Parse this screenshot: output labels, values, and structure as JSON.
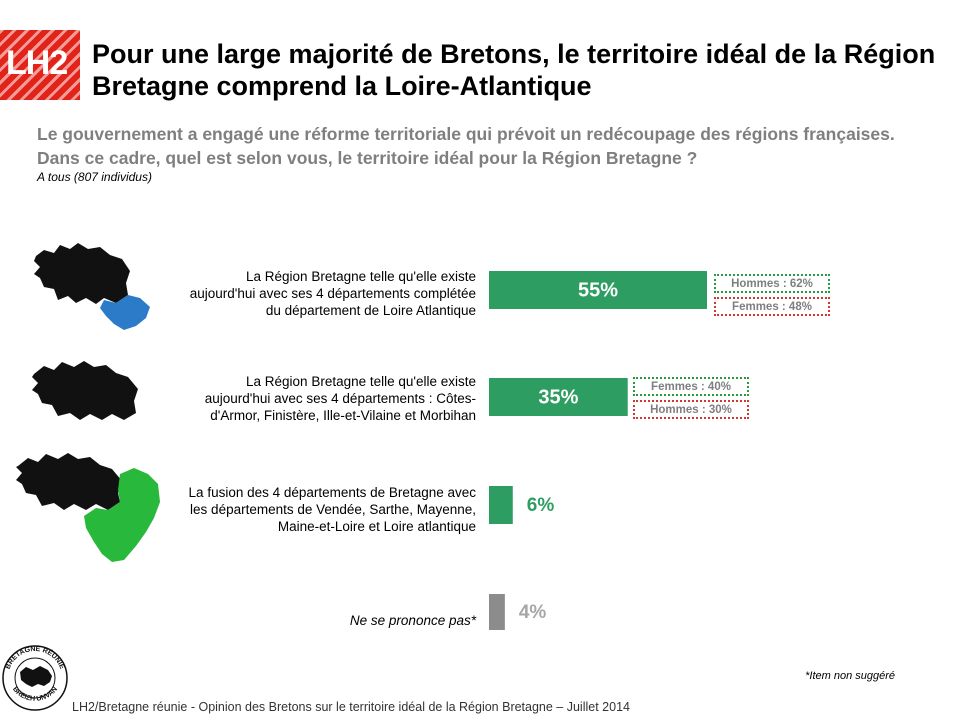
{
  "logo": {
    "text": "LH2"
  },
  "title": "Pour une large majorité de Bretons, le territoire idéal de la Région Bretagne comprend la Loire-Atlantique",
  "question": "Le gouvernement a engagé une réforme territoriale qui prévoit un redécoupage des régions françaises. Dans ce cadre, quel est selon vous, le territoire idéal pour la Région Bretagne ?",
  "base": "A tous (807 individus)",
  "chart_data": {
    "type": "bar",
    "orientation": "horizontal",
    "title": "Le territoire idéal pour la Région Bretagne",
    "xlim": [
      0,
      100
    ],
    "categories": [
      "La Région Bretagne telle qu'elle existe aujourd'hui avec ses 4 départements complétée du département de Loire Atlantique",
      "La Région Bretagne telle qu'elle existe aujourd'hui avec ses 4 départements : Côtes-d'Armor, Finistère, Ille-et-Vilaine et Morbihan",
      "La fusion des 4 départements de Bretagne avec les départements de Vendée, Sarthe, Mayenne, Maine-et-Loire et Loire atlantique",
      "Ne se prononce pas*"
    ],
    "values": [
      55,
      35,
      6,
      4
    ],
    "value_labels": [
      "55%",
      "35%",
      "6%",
      "4%"
    ],
    "bar_colors": [
      "#2e9d62",
      "#2e9d62",
      "#2e9d62",
      "#8c8c8c"
    ],
    "annotations": [
      {
        "bar": 0,
        "lines": [
          {
            "text": "Hommes : 62%",
            "border": "green"
          },
          {
            "text": "Femmes : 48%",
            "border": "red"
          }
        ]
      },
      {
        "bar": 1,
        "lines": [
          {
            "text": "Femmes : 40%",
            "border": "green"
          },
          {
            "text": "Hommes : 30%",
            "border": "red"
          }
        ]
      }
    ]
  },
  "colors": {
    "bar": "#2e9d62",
    "bar_nsp": "#8c8c8c",
    "logo": "#e2231a",
    "question": "#7f7f7f",
    "map_blue": "#2b7bc8",
    "map_green": "#28b83c"
  },
  "footnote": "*Item non suggéré",
  "footer": "LH2/Bretagne réunie - Opinion des Bretons sur le territoire idéal de la Région Bretagne – Juillet 2014",
  "seal": {
    "top_text": "BRETAGNE RÉUNIE",
    "bottom_text": "BREIZH UNVAN"
  }
}
